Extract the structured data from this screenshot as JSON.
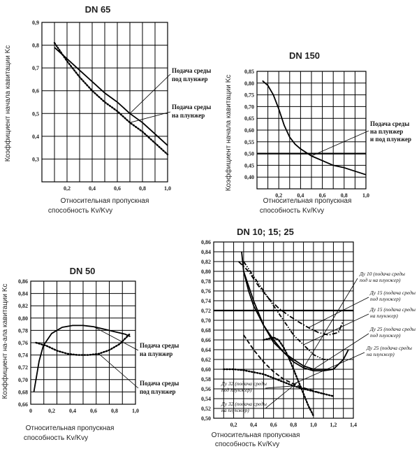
{
  "chart_data": [
    {
      "type": "line",
      "title": "DN 65",
      "ylabel": "Коэффициент начала кавитации Kc",
      "xlabel_lines": [
        "Относительная пропускная",
        "способность Kv/Kvy"
      ],
      "xlim": [
        0,
        1.0
      ],
      "ylim": [
        0.2,
        0.9
      ],
      "x_ticks": [
        "0,2",
        "0,4",
        "0,6",
        "0,8",
        "1,0"
      ],
      "y_ticks": [
        "0,3",
        "0,4",
        "0,5",
        "0,6",
        "0,7",
        "0,8",
        "0,9"
      ],
      "series": [
        {
          "name": "Подача среды под плунжер",
          "style": "solid",
          "x": [
            0.1,
            0.2,
            0.3,
            0.4,
            0.5,
            0.6,
            0.7,
            0.8,
            0.9,
            1.0
          ],
          "y": [
            0.79,
            0.74,
            0.69,
            0.64,
            0.59,
            0.55,
            0.5,
            0.46,
            0.41,
            0.36
          ]
        },
        {
          "name": "Подача среды на плунжер",
          "style": "dotted",
          "x": [
            0.1,
            0.2,
            0.3,
            0.4,
            0.5,
            0.6,
            0.7,
            0.8,
            0.9,
            1.0
          ],
          "y": [
            0.81,
            0.73,
            0.66,
            0.6,
            0.55,
            0.51,
            0.46,
            0.42,
            0.37,
            0.32
          ]
        }
      ],
      "annotations": [
        {
          "lines": [
            "Подача среды",
            "под плунжер"
          ],
          "series": 0
        },
        {
          "lines": [
            "Подача среды",
            "на плунжер"
          ],
          "series": 1
        }
      ]
    },
    {
      "type": "line",
      "title": "DN 150",
      "ylabel": "Коэффициент начала кавитации Kc",
      "xlabel_lines": [
        "Относительная пропускная",
        "способность Kv/Kvy"
      ],
      "xlim": [
        0,
        1.0
      ],
      "ylim": [
        0.35,
        0.85
      ],
      "x_ticks": [
        "0,2",
        "0,4",
        "0,6",
        "0,8",
        "1,0"
      ],
      "y_ticks": [
        "0,40",
        "0,45",
        "0,50",
        "0,55",
        "0,60",
        "0,65",
        "0,70",
        "0,75",
        "0,80",
        "0,85"
      ],
      "hline": 0.5,
      "series": [
        {
          "name": "Подача среды на плунжер и под плунжер",
          "style": "solid",
          "x": [
            0.05,
            0.1,
            0.15,
            0.2,
            0.25,
            0.3,
            0.35,
            0.4,
            0.5,
            0.6,
            0.7,
            0.8,
            0.9,
            1.0
          ],
          "y": [
            0.81,
            0.79,
            0.75,
            0.69,
            0.62,
            0.57,
            0.54,
            0.52,
            0.49,
            0.47,
            0.45,
            0.44,
            0.425,
            0.41
          ]
        }
      ],
      "annotations": [
        {
          "lines": [
            "Подача среды",
            "на плунжер",
            "и под плунжер"
          ],
          "series": 0
        }
      ]
    },
    {
      "type": "line",
      "title": "DN 50",
      "ylabel": "Коэффициент на-ала кавитации Kc",
      "xlabel_lines": [
        "Относительная пропускная",
        "способность Kv/Kvy"
      ],
      "xlim": [
        0,
        1.0
      ],
      "ylim": [
        0.66,
        0.86
      ],
      "x_ticks": [
        "0",
        "0,2",
        "0,4",
        "0,6",
        "0,8",
        "1,0"
      ],
      "y_ticks": [
        "0,66",
        "0,68",
        "0,70",
        "0,72",
        "0,74",
        "0,76",
        "0,78",
        "0,80",
        "0,82",
        "0,84",
        "0,86"
      ],
      "series": [
        {
          "name": "Подача среды на плунжер",
          "style": "solid",
          "x": [
            0.03,
            0.05,
            0.08,
            0.12,
            0.2,
            0.3,
            0.4,
            0.5,
            0.6,
            0.7,
            0.8,
            0.9,
            0.95
          ],
          "y": [
            0.68,
            0.7,
            0.73,
            0.755,
            0.775,
            0.785,
            0.788,
            0.788,
            0.786,
            0.782,
            0.778,
            0.774,
            0.77
          ]
        },
        {
          "name": "Подача среды под плунжер",
          "style": "dotted",
          "x": [
            0.05,
            0.15,
            0.25,
            0.35,
            0.45,
            0.55,
            0.65,
            0.75,
            0.85,
            0.95
          ],
          "y": [
            0.76,
            0.755,
            0.747,
            0.742,
            0.74,
            0.74,
            0.742,
            0.748,
            0.758,
            0.775
          ]
        }
      ],
      "annotations": [
        {
          "lines": [
            "Подача среды",
            "на плунжер"
          ],
          "series": 0
        },
        {
          "lines": [
            "Подача среды",
            "под плунжер"
          ],
          "series": 1
        }
      ]
    },
    {
      "type": "line",
      "title": "DN 10; 15; 25",
      "ylabel": "",
      "xlabel_lines": [
        "Относительная пропускная",
        "способность Kv/Kvy"
      ],
      "xlim": [
        0,
        1.4
      ],
      "ylim": [
        0.5,
        0.86
      ],
      "x_ticks": [
        "0,2",
        "0,4",
        "0,6",
        "0,8",
        "1,0",
        "1,2",
        "1,4"
      ],
      "y_ticks": [
        "0,50",
        "0,52",
        "0,54",
        "0,56",
        "0,58",
        "0,60",
        "0,62",
        "0,64",
        "0,66",
        "0,68",
        "0,70",
        "0,72",
        "0,74",
        "0,76",
        "0,78",
        "0,80",
        "0,82",
        "0,84",
        "0,86"
      ],
      "hline": 0.72,
      "series": [
        {
          "name": "Ду 10 (подача среды под и на плунжер)",
          "style": "solid",
          "x": [
            0.28,
            0.3,
            0.35,
            0.4,
            0.5,
            0.6,
            0.7,
            0.8,
            0.9,
            1.0,
            1.1,
            1.2,
            1.25
          ],
          "y": [
            0.84,
            0.8,
            0.76,
            0.73,
            0.69,
            0.66,
            0.635,
            0.615,
            0.603,
            0.597,
            0.597,
            0.6,
            0.61
          ]
        },
        {
          "name": "Ду 15 (подача среды под плунжер)",
          "style": "dashdot",
          "x": [
            0.25,
            0.35,
            0.45,
            0.55,
            0.65,
            0.75,
            0.85,
            0.95,
            1.05,
            1.15,
            1.25,
            1.3
          ],
          "y": [
            0.82,
            0.8,
            0.77,
            0.745,
            0.725,
            0.71,
            0.697,
            0.685,
            0.675,
            0.67,
            0.675,
            0.7
          ]
        },
        {
          "name": "Ду 15 (подача среды на плунжер)",
          "style": "dashdotdot",
          "x": [
            0.3,
            0.4,
            0.5,
            0.6,
            0.7,
            0.8,
            0.9,
            1.0,
            1.1,
            1.15
          ],
          "y": [
            0.82,
            0.79,
            0.76,
            0.73,
            0.7,
            0.67,
            0.65,
            0.63,
            0.62,
            0.62
          ]
        },
        {
          "name": "Ду 25 (подача среды под плунжер)",
          "style": "solid",
          "x": [
            0.3,
            0.4,
            0.5,
            0.6,
            0.7,
            0.8,
            0.9,
            1.0,
            1.1,
            1.2,
            1.3,
            1.35
          ],
          "y": [
            0.8,
            0.74,
            0.69,
            0.655,
            0.635,
            0.62,
            0.607,
            0.6,
            0.6,
            0.6,
            0.62,
            0.64
          ]
        },
        {
          "name": "Ду 25 (подача среды на плунжер)",
          "style": "dashed",
          "x": [
            0.3,
            0.35,
            0.4,
            0.5,
            0.6,
            0.7,
            0.8,
            0.9,
            1.0,
            1.1
          ],
          "y": [
            0.67,
            0.655,
            0.64,
            0.615,
            0.595,
            0.58,
            0.57,
            0.562,
            0.556,
            0.55
          ]
        },
        {
          "name": "Ду 32 (подача среды под плунжер)",
          "style": "dotted",
          "x": [
            0.1,
            0.2,
            0.3,
            0.4,
            0.5,
            0.6,
            0.7,
            0.8,
            0.9,
            1.0,
            1.1,
            1.2
          ],
          "y": [
            0.6,
            0.6,
            0.598,
            0.594,
            0.59,
            0.582,
            0.574,
            0.566,
            0.56,
            0.555,
            0.55,
            0.545
          ]
        },
        {
          "name": "Ду 32 (подача среды на плунжер)",
          "style": "dotted",
          "x": [
            0.5,
            0.6,
            0.65,
            0.7,
            0.75,
            0.8,
            0.85,
            0.9,
            0.95,
            1.0
          ],
          "y": [
            0.66,
            0.665,
            0.66,
            0.645,
            0.625,
            0.6,
            0.575,
            0.55,
            0.525,
            0.505
          ]
        }
      ],
      "annotations": [
        {
          "lines": [
            "Ду 10 (подача среды",
            "под и на плунжер)"
          ],
          "series": 0
        },
        {
          "lines": [
            "Ду 15 (подача среды",
            "под плунжер)"
          ],
          "series": 1
        },
        {
          "lines": [
            "Ду 15 (подача среды",
            "на плунжер)"
          ],
          "series": 2
        },
        {
          "lines": [
            "Ду 25 (подача среды",
            "под плунжер)"
          ],
          "series": 3
        },
        {
          "lines": [
            "Ду 25 (подача среды",
            "на плунжер)"
          ],
          "series": 4
        },
        {
          "lines": [
            "Ду 32 (подача среды",
            "под плунжер)"
          ],
          "series": 5
        },
        {
          "lines": [
            "Ду 32 (подача среды",
            "на плунжер)"
          ],
          "series": 6
        }
      ]
    }
  ]
}
